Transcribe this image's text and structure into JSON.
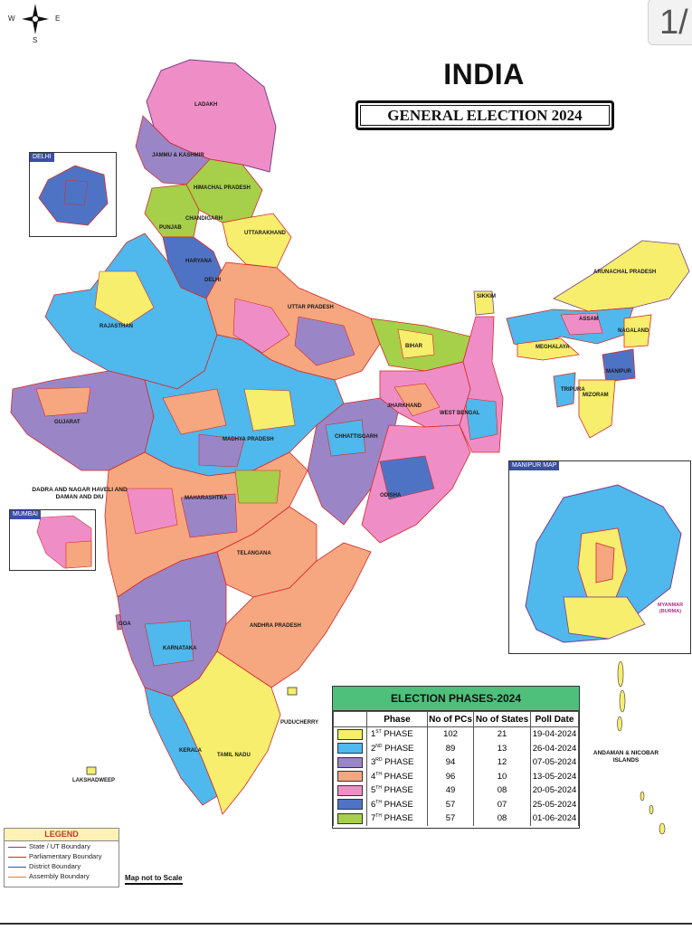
{
  "page_counter": "1/",
  "compass": {
    "west": "W",
    "east": "E",
    "south": "S"
  },
  "title": "INDIA",
  "subtitle": "GENERAL ELECTION 2024",
  "insets": {
    "delhi": "DELHI",
    "mumbai": "MUMBAI",
    "manipur": "MANIPUR MAP",
    "myanmar": "MYANMAR (BURMA)"
  },
  "region_labels": {
    "ladakh": "LADAKH",
    "jammu_kashmir": "JAMMU & KASHMIR",
    "himachal": "HIMACHAL PRADESH",
    "chandigarh": "CHANDIGARH",
    "punjab": "PUNJAB",
    "uttarakhand": "UTTARAKHAND",
    "haryana": "HARYANA",
    "delhi": "DELHI",
    "rajasthan": "RAJASTHAN",
    "uttar_pradesh": "UTTAR PRADESH",
    "bihar": "BIHAR",
    "sikkim": "SIKKIM",
    "arunachal": "ARUNACHAL PRADESH",
    "assam": "ASSAM",
    "nagaland": "NAGALAND",
    "meghalaya": "MEGHALAYA",
    "manipur": "MANIPUR",
    "tripura": "TRIPURA",
    "mizoram": "MIZORAM",
    "gujarat": "GUJARAT",
    "madhya_pradesh": "MADHYA PRADESH",
    "jharkhand": "JHARKHAND",
    "west_bengal": "WEST BENGAL",
    "chhattisgarh": "CHHATTISGARH",
    "odisha": "ODISHA",
    "dnh": "DADRA AND NAGAR HAVELI AND DAMAN AND DIU",
    "maharashtra": "MAHARASHTRA",
    "telangana": "TELANGANA",
    "andhra": "ANDHRA PRADESH",
    "goa": "GOA",
    "karnataka": "KARNATAKA",
    "puducherry": "PUDUCHERRY",
    "kerala": "KERALA",
    "tamil_nadu": "TAMIL NADU",
    "lakshadweep": "LAKSHADWEEP",
    "andaman": "ANDAMAN & NICOBAR ISLANDS"
  },
  "phases_table": {
    "title": "ELECTION PHASES-2024",
    "headers": [
      "",
      "Phase",
      "No of PCs",
      "No of States",
      "Poll Date"
    ],
    "rows": [
      {
        "color": "#f7ee6d",
        "ordinal": "1",
        "suffix": "ST",
        "label": "PHASE",
        "pcs": "102",
        "states": "21",
        "date": "19-04-2024"
      },
      {
        "color": "#4fb8ec",
        "ordinal": "2",
        "suffix": "ND",
        "label": "PHASE",
        "pcs": "89",
        "states": "13",
        "date": "26-04-2024"
      },
      {
        "color": "#9a86c6",
        "ordinal": "3",
        "suffix": "RD",
        "label": "PHASE",
        "pcs": "94",
        "states": "12",
        "date": "07-05-2024"
      },
      {
        "color": "#f6a77f",
        "ordinal": "4",
        "suffix": "TH",
        "label": "PHASE",
        "pcs": "96",
        "states": "10",
        "date": "13-05-2024"
      },
      {
        "color": "#ef8ec6",
        "ordinal": "5",
        "suffix": "TH",
        "label": "PHASE",
        "pcs": "49",
        "states": "08",
        "date": "20-05-2024"
      },
      {
        "color": "#4f73c4",
        "ordinal": "6",
        "suffix": "TH",
        "label": "PHASE",
        "pcs": "57",
        "states": "07",
        "date": "25-05-2024"
      },
      {
        "color": "#a6cf4a",
        "ordinal": "7",
        "suffix": "TH",
        "label": "PHASE",
        "pcs": "57",
        "states": "08",
        "date": "01-06-2024"
      }
    ]
  },
  "legend": {
    "title": "LEGEND",
    "items": [
      {
        "label": "State / UT Boundary",
        "color": "#7b3f8c"
      },
      {
        "label": "Parliamentary Boundary",
        "color": "#d62828"
      },
      {
        "label": "District Boundary",
        "color": "#3a4ea8"
      },
      {
        "label": "Assembly Boundary",
        "color": "#e07b39"
      }
    ]
  },
  "scale_note": "Map not to Scale"
}
